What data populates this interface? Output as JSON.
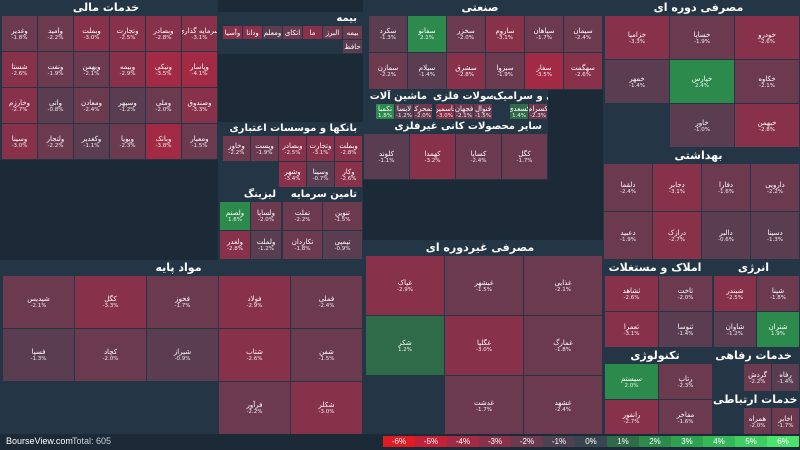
{
  "chart_data": {
    "type": "treemap",
    "title": "",
    "total_label": "Total: 605",
    "brand": "BourseView.com",
    "legend": [
      {
        "label": "-6%",
        "color": "#e01b24"
      },
      {
        "label": "-5%",
        "color": "#c4203a"
      },
      {
        "label": "-4%",
        "color": "#a32a44"
      },
      {
        "label": "-3%",
        "color": "#88314a"
      },
      {
        "label": "-2%",
        "color": "#6c3a4f"
      },
      {
        "label": "-1%",
        "color": "#4e4252"
      },
      {
        "label": "0%",
        "color": "#3a4552"
      },
      {
        "label": "1%",
        "color": "#2f6b48"
      },
      {
        "label": "2%",
        "color": "#2c8a4c"
      },
      {
        "label": "3%",
        "color": "#2fa252"
      },
      {
        "label": "4%",
        "color": "#35b85a"
      },
      {
        "label": "5%",
        "color": "#3ecd62"
      },
      {
        "label": "6%",
        "color": "#4ce36c"
      }
    ],
    "sectors": [
      {
        "name": "خدمات مالی",
        "tiles": [
          {
            "s": "سرمایه گذاری",
            "v": -3.1
          },
          {
            "s": "وبصادر",
            "v": -2.8
          },
          {
            "s": "وتجارت",
            "v": -2.5
          },
          {
            "s": "وبملت",
            "v": -3.0
          },
          {
            "s": "وامید",
            "v": -2.2
          },
          {
            "s": "وغدیر",
            "v": -1.8
          },
          {
            "s": "وپاسار",
            "v": -4.1
          },
          {
            "s": "ونیکی",
            "v": -3.5
          },
          {
            "s": "وبیمه",
            "v": -2.9
          },
          {
            "s": "وبهمن",
            "v": -2.1
          },
          {
            "s": "ونفت",
            "v": -1.9
          },
          {
            "s": "شستا",
            "v": -2.6
          },
          {
            "s": "وصندوق",
            "v": -3.3
          },
          {
            "s": "وملی",
            "v": -2.0
          },
          {
            "s": "وسپهر",
            "v": -1.2
          },
          {
            "s": "ومعادن",
            "v": -2.4
          },
          {
            "s": "واتی",
            "v": -0.8
          },
          {
            "s": "وخارزم",
            "v": -2.7
          },
          {
            "s": "ومعیار",
            "v": -1.5
          },
          {
            "s": "وبانک",
            "v": -3.8
          },
          {
            "s": "وپویا",
            "v": -2.3
          },
          {
            "s": "وکغدیر",
            "v": -1.1
          },
          {
            "s": "ولتجار",
            "v": -2.2
          },
          {
            "s": "وسینا",
            "v": -3.0
          }
        ]
      },
      {
        "name": "بیمه",
        "tiles": [
          {
            "s": "بیمه",
            "v": -2.1
          },
          {
            "s": "البرز",
            "v": -1.6
          },
          {
            "s": "ما",
            "v": -3.2
          },
          {
            "s": "اتکای",
            "v": -2.4
          },
          {
            "s": "ومعلم",
            "v": -1.3
          },
          {
            "s": "ودانا",
            "v": -2.7
          },
          {
            "s": "وآسیا",
            "v": -3.4
          },
          {
            "s": "حافظ",
            "v": -1.0
          }
        ]
      },
      {
        "name": "بانکها و موسسات اعتباری",
        "tiles": [
          {
            "s": "وبملت",
            "v": -2.8
          },
          {
            "s": "وتجارت",
            "v": -3.1
          },
          {
            "s": "وبصادر",
            "v": -2.5
          },
          {
            "s": "وپست",
            "v": -1.9
          },
          {
            "s": "وخاور",
            "v": -2.2
          },
          {
            "s": "وکار",
            "v": -2.6
          },
          {
            "s": "وسینا",
            "v": -0.7
          },
          {
            "s": "وشهر",
            "v": -3.4
          }
        ]
      },
      {
        "name": "لیزینگ",
        "tiles": [
          {
            "s": "ولساپا",
            "v": -2.0
          },
          {
            "s": "ولصنم",
            "v": 1.6
          },
          {
            "s": "ولملت",
            "v": -1.2
          },
          {
            "s": "ولغدر",
            "v": -2.8
          }
        ]
      },
      {
        "name": "تامین سرمایه",
        "tiles": [
          {
            "s": "تنوین",
            "v": -1.5
          },
          {
            "s": "تملت",
            "v": -2.2
          },
          {
            "s": "تپمپی",
            "v": -0.9
          },
          {
            "s": "تکاردان",
            "v": -1.8
          }
        ]
      },
      {
        "name": "صنعتی",
        "tiles": [
          {
            "s": "سیمان",
            "v": -2.4
          },
          {
            "s": "سپاهان",
            "v": -1.7
          },
          {
            "s": "ساروم",
            "v": -3.1
          },
          {
            "s": "سخزر",
            "v": -2.0
          },
          {
            "s": "سفانو",
            "v": 2.1
          },
          {
            "s": "سکرد",
            "v": -1.3
          },
          {
            "s": "سهگمت",
            "v": -2.6
          },
          {
            "s": "سفار",
            "v": -3.5
          },
          {
            "s": "سبزوا",
            "v": -1.9
          },
          {
            "s": "سشرق",
            "v": -2.8
          },
          {
            "s": "سیلام",
            "v": -1.4
          },
          {
            "s": "سمازن",
            "v": -2.2
          }
        ]
      },
      {
        "name": "ماشین آلات",
        "tiles": [
          {
            "s": "خمحرکه",
            "v": -2.0
          },
          {
            "s": "لابسا",
            "v": -1.2
          },
          {
            "s": "تکمبا",
            "v": 1.8
          },
          {
            "s": "تپمپی",
            "v": -2.6
          }
        ]
      },
      {
        "name": "محصولات فلزی",
        "tiles": [
          {
            "s": "فنوال",
            "v": -1.5
          },
          {
            "s": "فجهان",
            "v": -2.1
          },
          {
            "s": "فاسمین",
            "v": -3.0
          },
          {
            "s": "فولاد",
            "v": -1.6
          }
        ]
      },
      {
        "name": "کاشی و سرامیک",
        "tiles": [
          {
            "s": "کسرام",
            "v": -2.3
          },
          {
            "s": "کسعدی",
            "v": 1.4
          },
          {
            "s": "کاما",
            "v": -1.8
          },
          {
            "s": "کرازی",
            "v": -2.0
          }
        ]
      },
      {
        "name": "سایر محصولات کانی غیرفلزی",
        "tiles": [
          {
            "s": "کگل",
            "v": -1.7
          },
          {
            "s": "کساپا",
            "v": -2.4
          },
          {
            "s": "کهمدا",
            "v": -3.2
          },
          {
            "s": "کلوند",
            "v": -1.1
          }
        ]
      },
      {
        "name": "مصرفی دوره ای",
        "tiles": [
          {
            "s": "خودرو",
            "v": -2.6
          },
          {
            "s": "خساپا",
            "v": -1.9
          },
          {
            "s": "خزامیا",
            "v": -3.3
          },
          {
            "s": "خکاوه",
            "v": -2.1
          },
          {
            "s": "خپارس",
            "v": 2.4
          },
          {
            "s": "خمهر",
            "v": -1.4
          },
          {
            "s": "خبهمن",
            "v": -2.8
          },
          {
            "s": "خاور",
            "v": -1.0
          }
        ]
      },
      {
        "name": "بهداشتی",
        "tiles": [
          {
            "s": "دارویی",
            "v": -2.2
          },
          {
            "s": "دفارا",
            "v": -1.6
          },
          {
            "s": "دجابر",
            "v": -3.1
          },
          {
            "s": "دلقما",
            "v": -2.4
          },
          {
            "s": "دسینا",
            "v": -1.3
          },
          {
            "s": "دالبر",
            "v": -0.6
          },
          {
            "s": "درازک",
            "v": -2.7
          },
          {
            "s": "دعبید",
            "v": -1.9
          }
        ]
      },
      {
        "name": "مصرفی غیردوره ای",
        "tiles": [
          {
            "s": "غذایی",
            "v": -2.1
          },
          {
            "s": "غبشهر",
            "v": -1.5
          },
          {
            "s": "غپاک",
            "v": -2.9
          },
          {
            "s": "غمارگ",
            "v": -1.8
          },
          {
            "s": "غگلپا",
            "v": -3.0
          },
          {
            "s": "شکر",
            "v": 1.2
          },
          {
            "s": "غشهد",
            "v": -2.4
          },
          {
            "s": "غدشت",
            "v": -1.7
          }
        ]
      },
      {
        "name": "املاک و مستغلات",
        "tiles": [
          {
            "s": "ثاخت",
            "v": -2.0
          },
          {
            "s": "ثشاهد",
            "v": -2.6
          },
          {
            "s": "ثنوسا",
            "v": -1.4
          },
          {
            "s": "ثعمرا",
            "v": -3.1
          }
        ]
      },
      {
        "name": "انرژی",
        "tiles": [
          {
            "s": "شپنا",
            "v": -1.8
          },
          {
            "s": "شبندر",
            "v": -2.5
          },
          {
            "s": "شتران",
            "v": 1.9
          },
          {
            "s": "شاوان",
            "v": -1.2
          }
        ]
      },
      {
        "name": "مواد پایه",
        "tiles": [
          {
            "s": "فملی",
            "v": -2.4
          },
          {
            "s": "فولاد",
            "v": -2.9
          },
          {
            "s": "فخوز",
            "v": -1.7
          },
          {
            "s": "کگل",
            "v": -3.3
          },
          {
            "s": "شپدیس",
            "v": -2.1
          },
          {
            "s": "شفن",
            "v": -1.5
          },
          {
            "s": "شتاب",
            "v": -2.6
          },
          {
            "s": "شیراز",
            "v": -0.9
          },
          {
            "s": "کچاد",
            "v": -2.0
          },
          {
            "s": "فسپا",
            "v": -1.3
          },
          {
            "s": "شکلر",
            "v": -3.0
          },
          {
            "s": "فرآور",
            "v": -2.2
          }
        ]
      },
      {
        "name": "تکنولوژی",
        "tiles": [
          {
            "s": "رتاپ",
            "v": -2.3
          },
          {
            "s": "سیستم",
            "v": 2.0
          },
          {
            "s": "مفاخر",
            "v": -1.6
          },
          {
            "s": "رانفور",
            "v": -2.7
          }
        ]
      },
      {
        "name": "خدمات رفاهی",
        "tiles": [
          {
            "s": "رفاه",
            "v": -1.4
          },
          {
            "s": "گردش",
            "v": -2.2
          }
        ]
      },
      {
        "name": "خدمات ارتباطی",
        "tiles": [
          {
            "s": "اخابر",
            "v": -1.7
          },
          {
            "s": "همراه",
            "v": -2.0
          }
        ]
      }
    ]
  }
}
